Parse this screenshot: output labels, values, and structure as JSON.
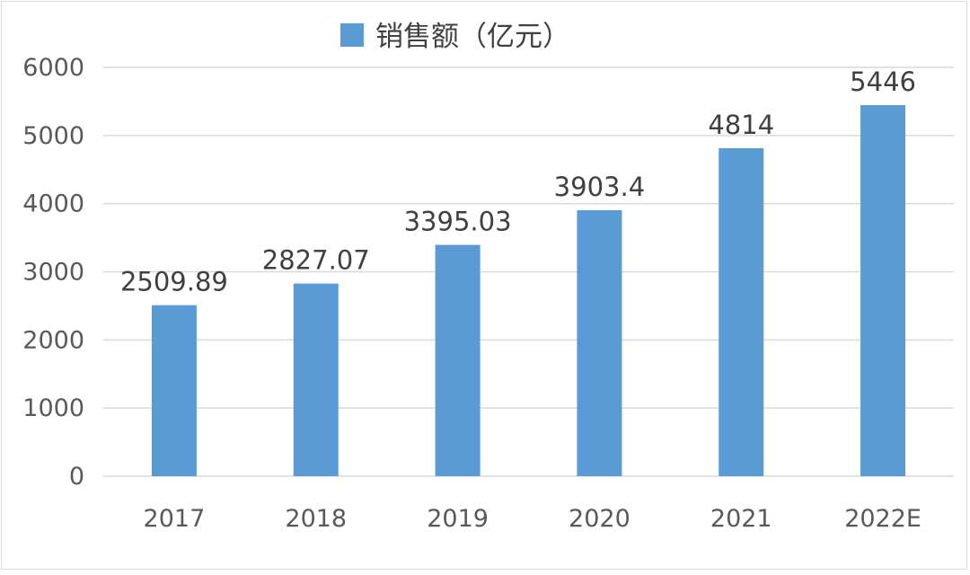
{
  "chart_data": {
    "type": "bar",
    "legend_position": "top",
    "series": [
      {
        "name": "销售额（亿元）",
        "color": "#5b9bd5",
        "values": [
          2509.89,
          2827.07,
          3395.03,
          3903.4,
          4814,
          5446
        ]
      }
    ],
    "categories": [
      "2017",
      "2018",
      "2019",
      "2020",
      "2021",
      "2022E"
    ],
    "data_labels": [
      "2509.89",
      "2827.07",
      "3395.03",
      "3903.4",
      "4814",
      "5446"
    ],
    "y_ticks": [
      "0",
      "1000",
      "2000",
      "3000",
      "4000",
      "5000",
      "6000"
    ],
    "ylim": [
      0,
      6000
    ],
    "grid": true
  }
}
